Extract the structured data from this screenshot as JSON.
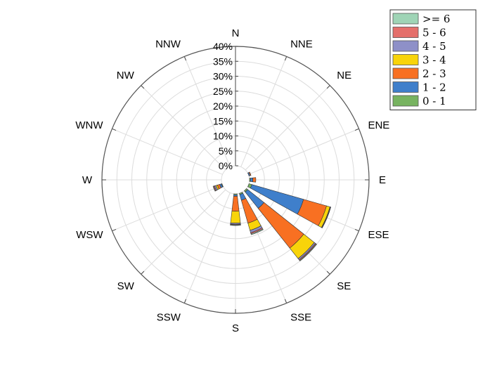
{
  "chart_data": {
    "type": "windrose",
    "directions": [
      "N",
      "NNE",
      "NE",
      "ENE",
      "E",
      "ESE",
      "SE",
      "SSE",
      "S",
      "SSW",
      "SW",
      "WSW",
      "W",
      "WNW",
      "NW",
      "NNW"
    ],
    "radial_ticks": [
      "0%",
      "5%",
      "10%",
      "15%",
      "20%",
      "25%",
      "30%",
      "35%",
      "40%"
    ],
    "radial_max": 40,
    "grid": true,
    "legend_position": "top-right",
    "series": [
      {
        "name": "0 - 1",
        "color": "#77b360",
        "values": [
          0,
          0,
          0,
          0,
          0.3,
          1.0,
          0.5,
          0.4,
          0.3,
          0,
          0,
          0.2,
          0,
          0,
          0,
          0
        ]
      },
      {
        "name": "1 - 2",
        "color": "#3f7fcb",
        "values": [
          0,
          0,
          0,
          0.4,
          0.8,
          18.0,
          7.0,
          2.0,
          0.5,
          0,
          0,
          0.6,
          0,
          0,
          0,
          0
        ]
      },
      {
        "name": "2 - 3",
        "color": "#f87022",
        "values": [
          0,
          0,
          0,
          0.3,
          1.0,
          8.0,
          17.0,
          8.0,
          5.0,
          0,
          0,
          0.8,
          0,
          0,
          0,
          0
        ]
      },
      {
        "name": "3 - 4",
        "color": "#f8d40a",
        "values": [
          0,
          0,
          0,
          0,
          0,
          1.2,
          4.5,
          2.5,
          4.0,
          0,
          0,
          0.5,
          0,
          0,
          0,
          0
        ]
      },
      {
        "name": "4 - 5",
        "color": "#8e90c8",
        "values": [
          0,
          0,
          0,
          0,
          0,
          0.2,
          0.5,
          0.8,
          0.4,
          0,
          0,
          0.5,
          0,
          0,
          0,
          0
        ]
      },
      {
        "name": "5 - 6",
        "color": "#e46f6b",
        "values": [
          0,
          0,
          0,
          0,
          0,
          0.1,
          0.3,
          0.4,
          0.2,
          0,
          0,
          0.3,
          0,
          0,
          0,
          0
        ]
      },
      {
        "name": ">= 6",
        "color": "#9fd4b6",
        "values": [
          0,
          0,
          0,
          0,
          0,
          0,
          0.2,
          0.3,
          0.2,
          0,
          0,
          0.2,
          0,
          0,
          0,
          0
        ]
      }
    ]
  }
}
